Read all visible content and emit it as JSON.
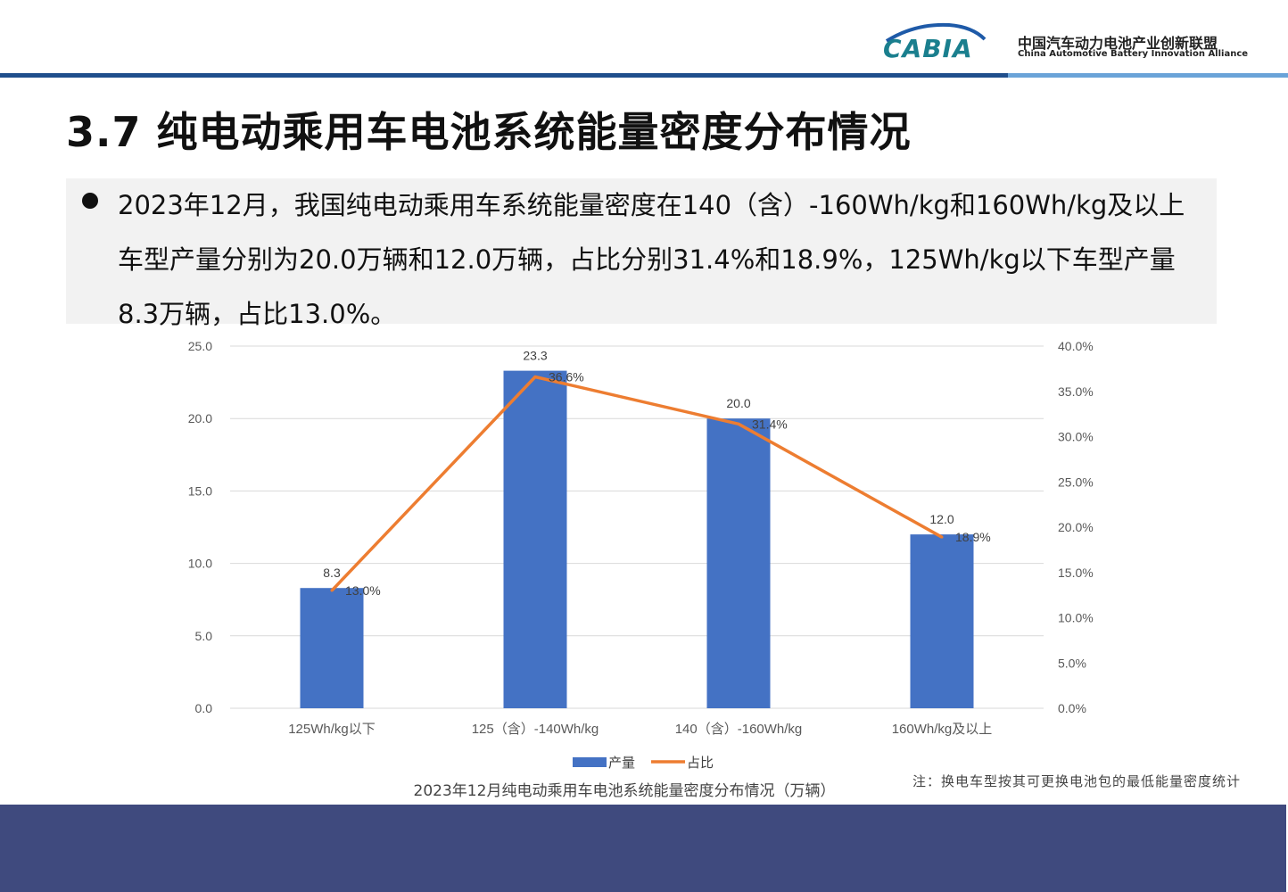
{
  "header": {
    "logo_text": "CABIA",
    "org_name_cn": "中国汽车动力电池产业创新联盟",
    "org_name_en": "China Automotive Battery Innovation Alliance"
  },
  "title": "3.7 纯电动乘用车电池系统能量密度分布情况",
  "summary": "2023年12月，我国纯电动乘用车系统能量密度在140（含）-160Wh/kg和160Wh/kg及以上车型产量分别为20.0万辆和12.0万辆，占比分别31.4%和18.9%，125Wh/kg以下车型产量8.3万辆，占比13.0%。",
  "chart_data": {
    "type": "bar",
    "title": "2023年12月纯电动乘用车电池系统能量密度分布情况（万辆）",
    "categories": [
      "125Wh/kg以下",
      "125（含）-140Wh/kg",
      "140（含）-160Wh/kg",
      "160Wh/kg及以上"
    ],
    "series": [
      {
        "name": "产量",
        "type": "bar",
        "axis": "left",
        "values": [
          8.3,
          23.3,
          20.0,
          12.0
        ],
        "labels": [
          "8.3",
          "23.3",
          "20.0",
          "12.0"
        ],
        "color": "#4472c4"
      },
      {
        "name": "占比",
        "type": "line",
        "axis": "right",
        "values": [
          13.0,
          36.6,
          31.4,
          18.9
        ],
        "labels": [
          "13.0%",
          "36.6%",
          "31.4%",
          "18.9%"
        ],
        "color": "#ed7d31"
      }
    ],
    "ylim_left": [
      0,
      25
    ],
    "yticks_left": [
      "0.0",
      "5.0",
      "10.0",
      "15.0",
      "20.0",
      "25.0"
    ],
    "ylim_right": [
      0,
      40
    ],
    "yticks_right": [
      "0.0%",
      "5.0%",
      "10.0%",
      "15.0%",
      "20.0%",
      "25.0%",
      "30.0%",
      "35.0%",
      "40.0%"
    ],
    "grid": true,
    "legend_position": "bottom"
  },
  "note": "注：换电车型按其可更换电池包的最低能量密度统计"
}
